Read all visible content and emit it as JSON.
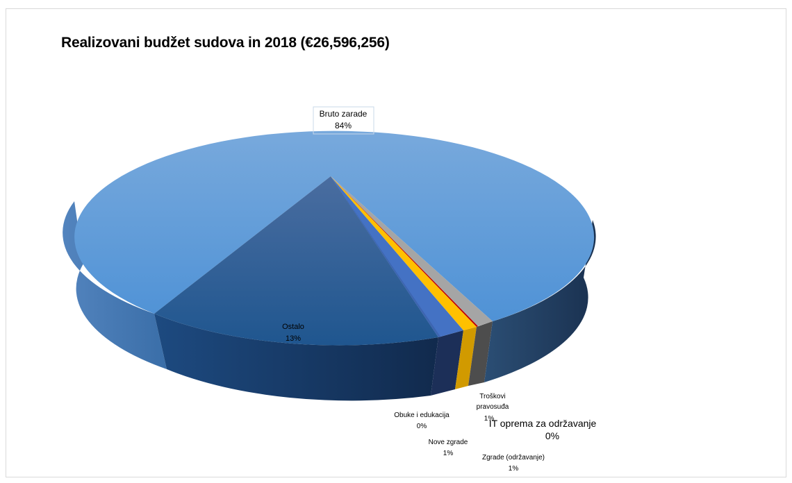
{
  "chart_data": {
    "type": "pie",
    "style": "3d",
    "title": "Realizovani budžet sudova in 2018 (€26,596,256)",
    "slices": [
      {
        "label": "Bruto zarade",
        "percent_label": "84%",
        "value": 84.0,
        "color": "#5b9bd5"
      },
      {
        "label": "Ostalo",
        "percent_label": "13%",
        "value": 13.0,
        "color": "#264478"
      },
      {
        "label": "Obuke i edukacija",
        "percent_label": "0%",
        "value": 0.4,
        "color": "#4472c4"
      },
      {
        "label": "Nove zgrade",
        "percent_label": "1%",
        "value": 1.0,
        "color": "#4472c4"
      },
      {
        "label": "Troškovi pravosuđa",
        "percent_label": "1%",
        "value": 0.8,
        "color": "#ffc000"
      },
      {
        "label": "IT oprema za održavanje",
        "percent_label": "0%",
        "value": 0.2,
        "color": "#c00000"
      },
      {
        "label": "Zgrade (održavanje)",
        "percent_label": "1%",
        "value": 0.6,
        "color": "#a5a5a5"
      }
    ]
  }
}
